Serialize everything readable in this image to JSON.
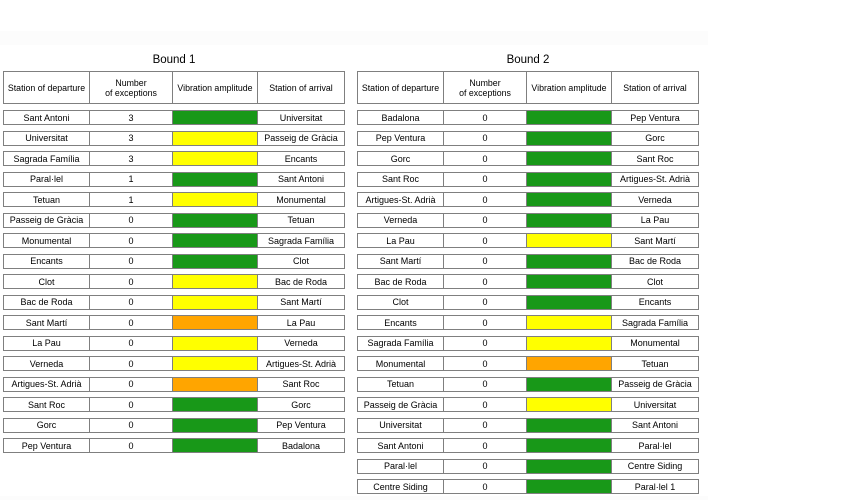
{
  "page": {
    "background": "#ffffff",
    "faint_band_color": "#fcfcfc"
  },
  "colors": {
    "green": "#189818",
    "yellow": "#ffff00",
    "orange": "#ffa500",
    "border": "#7f7f7f"
  },
  "tables": [
    {
      "title": "Bound 1",
      "headers": [
        "Station of departure",
        "Number of exceptions",
        "Vibration amplitude",
        "Station of arrival"
      ],
      "rows": [
        {
          "departure": "Sant Antoni",
          "exceptions": "3",
          "amplitude": "green",
          "arrival": "Universitat"
        },
        {
          "departure": "Universitat",
          "exceptions": "3",
          "amplitude": "yellow",
          "arrival": "Passeig de Gràcia"
        },
        {
          "departure": "Sagrada Família",
          "exceptions": "3",
          "amplitude": "yellow",
          "arrival": "Encants"
        },
        {
          "departure": "Paral·lel",
          "exceptions": "1",
          "amplitude": "green",
          "arrival": "Sant Antoni"
        },
        {
          "departure": "Tetuan",
          "exceptions": "1",
          "amplitude": "yellow",
          "arrival": "Monumental"
        },
        {
          "departure": "Passeig de Gràcia",
          "exceptions": "0",
          "amplitude": "green",
          "arrival": "Tetuan"
        },
        {
          "departure": "Monumental",
          "exceptions": "0",
          "amplitude": "green",
          "arrival": "Sagrada Família"
        },
        {
          "departure": "Encants",
          "exceptions": "0",
          "amplitude": "green",
          "arrival": "Clot"
        },
        {
          "departure": "Clot",
          "exceptions": "0",
          "amplitude": "yellow",
          "arrival": "Bac de Roda"
        },
        {
          "departure": "Bac de Roda",
          "exceptions": "0",
          "amplitude": "yellow",
          "arrival": "Sant Martí"
        },
        {
          "departure": "Sant Martí",
          "exceptions": "0",
          "amplitude": "orange",
          "arrival": "La Pau"
        },
        {
          "departure": "La Pau",
          "exceptions": "0",
          "amplitude": "yellow",
          "arrival": "Verneda"
        },
        {
          "departure": "Verneda",
          "exceptions": "0",
          "amplitude": "yellow",
          "arrival": "Artigues-St. Adrià"
        },
        {
          "departure": "Artigues-St. Adrià",
          "exceptions": "0",
          "amplitude": "orange",
          "arrival": "Sant Roc"
        },
        {
          "departure": "Sant Roc",
          "exceptions": "0",
          "amplitude": "green",
          "arrival": "Gorc"
        },
        {
          "departure": "Gorc",
          "exceptions": "0",
          "amplitude": "green",
          "arrival": "Pep Ventura"
        },
        {
          "departure": "Pep Ventura",
          "exceptions": "0",
          "amplitude": "green",
          "arrival": "Badalona"
        }
      ]
    },
    {
      "title": "Bound 2",
      "headers": [
        "Station of departure",
        "Number of exceptions",
        "Vibration amplitude",
        "Station of arrival"
      ],
      "rows": [
        {
          "departure": "Badalona",
          "exceptions": "0",
          "amplitude": "green",
          "arrival": "Pep Ventura"
        },
        {
          "departure": "Pep Ventura",
          "exceptions": "0",
          "amplitude": "green",
          "arrival": "Gorc"
        },
        {
          "departure": "Gorc",
          "exceptions": "0",
          "amplitude": "green",
          "arrival": "Sant Roc"
        },
        {
          "departure": "Sant Roc",
          "exceptions": "0",
          "amplitude": "green",
          "arrival": "Artigues-St. Adrià"
        },
        {
          "departure": "Artigues-St. Adrià",
          "exceptions": "0",
          "amplitude": "green",
          "arrival": "Verneda"
        },
        {
          "departure": "Verneda",
          "exceptions": "0",
          "amplitude": "green",
          "arrival": "La Pau"
        },
        {
          "departure": "La Pau",
          "exceptions": "0",
          "amplitude": "yellow",
          "arrival": "Sant Martí"
        },
        {
          "departure": "Sant Martí",
          "exceptions": "0",
          "amplitude": "green",
          "arrival": "Bac de Roda"
        },
        {
          "departure": "Bac de Roda",
          "exceptions": "0",
          "amplitude": "green",
          "arrival": "Clot"
        },
        {
          "departure": "Clot",
          "exceptions": "0",
          "amplitude": "green",
          "arrival": "Encants"
        },
        {
          "departure": "Encants",
          "exceptions": "0",
          "amplitude": "yellow",
          "arrival": "Sagrada Família"
        },
        {
          "departure": "Sagrada Família",
          "exceptions": "0",
          "amplitude": "yellow",
          "arrival": "Monumental"
        },
        {
          "departure": "Monumental",
          "exceptions": "0",
          "amplitude": "orange",
          "arrival": "Tetuan"
        },
        {
          "departure": "Tetuan",
          "exceptions": "0",
          "amplitude": "green",
          "arrival": "Passeig de Gràcia"
        },
        {
          "departure": "Passeig de Gràcia",
          "exceptions": "0",
          "amplitude": "yellow",
          "arrival": "Universitat"
        },
        {
          "departure": "Universitat",
          "exceptions": "0",
          "amplitude": "green",
          "arrival": "Sant Antoni"
        },
        {
          "departure": "Sant Antoni",
          "exceptions": "0",
          "amplitude": "green",
          "arrival": "Paral·lel"
        },
        {
          "departure": "Paral·lel",
          "exceptions": "0",
          "amplitude": "green",
          "arrival": "Centre Siding"
        },
        {
          "departure": "Centre Siding",
          "exceptions": "0",
          "amplitude": "green",
          "arrival": "Paral·lel 1"
        }
      ]
    }
  ]
}
